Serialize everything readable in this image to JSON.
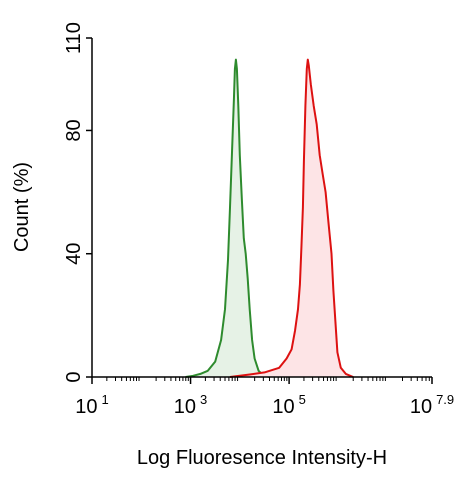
{
  "chart_data": {
    "type": "area",
    "xlabel": "Log Fluoresence Intensity-H",
    "ylabel": "Count  (%)",
    "x_scale": "log10",
    "xlim": [
      1,
      7.9
    ],
    "ylim": [
      0,
      110
    ],
    "x_ticks": [
      {
        "value": 1,
        "base": "10",
        "exp": "1"
      },
      {
        "value": 3,
        "base": "10",
        "exp": "3"
      },
      {
        "value": 5,
        "base": "10",
        "exp": "5"
      },
      {
        "value": 7.9,
        "base": "10",
        "exp": "7.9"
      }
    ],
    "y_ticks": [
      {
        "value": 0,
        "label": "0"
      },
      {
        "value": 40,
        "label": "40"
      },
      {
        "value": 80,
        "label": "80"
      },
      {
        "value": 110,
        "label": "110"
      }
    ],
    "grid": false,
    "legend": "none",
    "series": [
      {
        "color": "#2e8b2e",
        "fill": "#e6f2e6",
        "points": [
          [
            2.9,
            0
          ],
          [
            3.05,
            0.4
          ],
          [
            3.2,
            1
          ],
          [
            3.35,
            2
          ],
          [
            3.5,
            5
          ],
          [
            3.62,
            12
          ],
          [
            3.7,
            22
          ],
          [
            3.76,
            38
          ],
          [
            3.8,
            55
          ],
          [
            3.84,
            72
          ],
          [
            3.88,
            90
          ],
          [
            3.9,
            100
          ],
          [
            3.92,
            103
          ],
          [
            3.94,
            100
          ],
          [
            3.97,
            88
          ],
          [
            4.0,
            72
          ],
          [
            4.04,
            58
          ],
          [
            4.08,
            45
          ],
          [
            4.12,
            40
          ],
          [
            4.16,
            32
          ],
          [
            4.2,
            22
          ],
          [
            4.25,
            12
          ],
          [
            4.3,
            6
          ],
          [
            4.38,
            2
          ],
          [
            4.48,
            0.5
          ],
          [
            4.6,
            0
          ]
        ]
      },
      {
        "color": "#dd1111",
        "fill": "#fde4e6",
        "points": [
          [
            3.8,
            0
          ],
          [
            4.2,
            0.8
          ],
          [
            4.5,
            1.5
          ],
          [
            4.8,
            3
          ],
          [
            4.95,
            6
          ],
          [
            5.05,
            9
          ],
          [
            5.12,
            15
          ],
          [
            5.18,
            22
          ],
          [
            5.22,
            30
          ],
          [
            5.25,
            42
          ],
          [
            5.28,
            55
          ],
          [
            5.3,
            70
          ],
          [
            5.33,
            88
          ],
          [
            5.36,
            100
          ],
          [
            5.38,
            103
          ],
          [
            5.4,
            101
          ],
          [
            5.44,
            95
          ],
          [
            5.5,
            88
          ],
          [
            5.56,
            82
          ],
          [
            5.62,
            72
          ],
          [
            5.68,
            66
          ],
          [
            5.74,
            60
          ],
          [
            5.8,
            50
          ],
          [
            5.86,
            40
          ],
          [
            5.9,
            28
          ],
          [
            5.94,
            18
          ],
          [
            5.98,
            8
          ],
          [
            6.05,
            3
          ],
          [
            6.15,
            1
          ],
          [
            6.3,
            0
          ]
        ]
      }
    ]
  }
}
